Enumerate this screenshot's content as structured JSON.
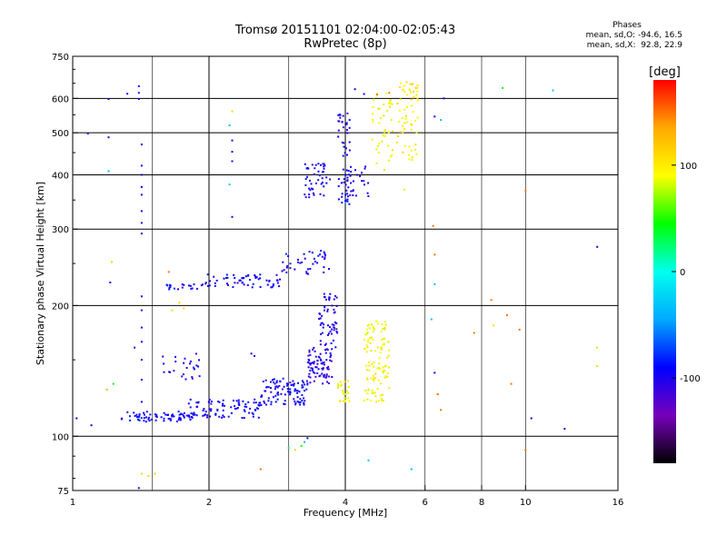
{
  "title_line1": "Tromsø 20151101 02:04:00-02:05:43",
  "title_line2": "RwPretec (8p)",
  "phases": {
    "title": "Phases",
    "stat_o": "mean, sd,O: -94.6, 16.5",
    "stat_x": "mean, sd,X:  92.8, 22.9"
  },
  "chart_data": {
    "type": "scatter",
    "xlabel": "Frequency [MHz]",
    "ylabel": "Stationary phase Virtual Height [km]",
    "x_scale": "log",
    "y_scale": "log",
    "xlim": [
      1,
      16
    ],
    "ylim": [
      75,
      750
    ],
    "x_ticks": [
      1,
      2,
      4,
      6,
      8,
      10,
      16
    ],
    "x_tick_labels": [
      "1",
      "2",
      "4",
      "6",
      "8",
      "10",
      "16"
    ],
    "x_major_grid": [
      1,
      2,
      4,
      16
    ],
    "x_minor_grid": [
      1.5,
      3,
      6,
      8,
      10
    ],
    "y_ticks": [
      75,
      100,
      200,
      300,
      400,
      500,
      600,
      750
    ],
    "y_tick_labels": [
      "75",
      "100",
      "200",
      "300",
      "400",
      "500",
      "600",
      "750"
    ],
    "y_grid": [
      100,
      200,
      300,
      400,
      500,
      600
    ],
    "grid": true,
    "colorbar": {
      "label": "[deg]",
      "range": [
        -180,
        180
      ],
      "ticks": [
        100,
        0,
        -100
      ],
      "tick_labels": [
        "100",
        "0",
        "-100"
      ],
      "colors": [
        "#000000",
        "#7700bb",
        "#0000ff",
        "#00aaff",
        "#00ffee",
        "#00ff00",
        "#ffff00",
        "#ffaa00",
        "#ff0000"
      ]
    },
    "clusters": [
      {
        "x_range": [
          1.28,
          1.85
        ],
        "y_range": [
          108,
          114
        ],
        "count": 70,
        "phase": -95
      },
      {
        "x_range": [
          1.8,
          2.6
        ],
        "y_range": [
          110,
          122
        ],
        "count": 90,
        "phase": -95
      },
      {
        "x_range": [
          2.6,
          3.3
        ],
        "y_range": [
          118,
          136
        ],
        "count": 100,
        "phase": -95
      },
      {
        "x_range": [
          3.3,
          3.75
        ],
        "y_range": [
          132,
          160
        ],
        "count": 80,
        "phase": -105
      },
      {
        "x_range": [
          3.5,
          3.85
        ],
        "y_range": [
          160,
          215
        ],
        "count": 60,
        "phase": -100
      },
      {
        "x_range": [
          3.85,
          4.1
        ],
        "y_range": [
          120,
          135
        ],
        "count": 25,
        "phase": 95
      },
      {
        "x_range": [
          4.4,
          5.0
        ],
        "y_range": [
          120,
          185
        ],
        "count": 110,
        "phase": 95
      },
      {
        "x_range": [
          1.6,
          1.95
        ],
        "y_range": [
          218,
          224
        ],
        "count": 20,
        "phase": -95
      },
      {
        "x_range": [
          1.95,
          2.9
        ],
        "y_range": [
          220,
          236
        ],
        "count": 60,
        "phase": -95
      },
      {
        "x_range": [
          2.9,
          3.7
        ],
        "y_range": [
          236,
          268
        ],
        "count": 40,
        "phase": -95
      },
      {
        "x_range": [
          1.55,
          1.95
        ],
        "y_range": [
          135,
          158
        ],
        "count": 25,
        "phase": -100
      },
      {
        "x_range": [
          3.25,
          3.7
        ],
        "y_range": [
          355,
          425
        ],
        "count": 45,
        "phase": -100
      },
      {
        "x_range": [
          3.85,
          4.1
        ],
        "y_range": [
          340,
          560
        ],
        "count": 55,
        "phase": -100
      },
      {
        "x_range": [
          4.0,
          4.5
        ],
        "y_range": [
          350,
          420
        ],
        "count": 25,
        "phase": -100
      },
      {
        "x_range": [
          4.55,
          5.1
        ],
        "y_range": [
          410,
          620
        ],
        "count": 45,
        "phase": 95
      },
      {
        "x_range": [
          5.2,
          5.8
        ],
        "y_range": [
          430,
          660
        ],
        "count": 60,
        "phase": 100
      }
    ],
    "points": [
      {
        "x": 1.08,
        "y": 498,
        "phase": -95
      },
      {
        "x": 1.2,
        "y": 598,
        "phase": -100
      },
      {
        "x": 1.2,
        "y": 488,
        "phase": -95
      },
      {
        "x": 1.2,
        "y": 408,
        "phase": -30
      },
      {
        "x": 1.22,
        "y": 252,
        "phase": 110
      },
      {
        "x": 1.21,
        "y": 226,
        "phase": -95
      },
      {
        "x": 1.19,
        "y": 128,
        "phase": 130
      },
      {
        "x": 1.23,
        "y": 132,
        "phase": 40
      },
      {
        "x": 1.32,
        "y": 615,
        "phase": -95
      },
      {
        "x": 1.4,
        "y": 640,
        "phase": -100
      },
      {
        "x": 1.4,
        "y": 618,
        "phase": -110
      },
      {
        "x": 1.4,
        "y": 598,
        "phase": -100
      },
      {
        "x": 1.42,
        "y": 470,
        "phase": -100
      },
      {
        "x": 1.42,
        "y": 420,
        "phase": -100
      },
      {
        "x": 1.42,
        "y": 400,
        "phase": -110
      },
      {
        "x": 1.42,
        "y": 375,
        "phase": -95
      },
      {
        "x": 1.42,
        "y": 360,
        "phase": -100
      },
      {
        "x": 1.42,
        "y": 330,
        "phase": -100
      },
      {
        "x": 1.42,
        "y": 310,
        "phase": -110
      },
      {
        "x": 1.42,
        "y": 293,
        "phase": -100
      },
      {
        "x": 1.42,
        "y": 210,
        "phase": -100
      },
      {
        "x": 1.42,
        "y": 195,
        "phase": -110
      },
      {
        "x": 1.42,
        "y": 178,
        "phase": -100
      },
      {
        "x": 1.42,
        "y": 165,
        "phase": -100
      },
      {
        "x": 1.42,
        "y": 150,
        "phase": -110
      },
      {
        "x": 1.42,
        "y": 135,
        "phase": -100
      },
      {
        "x": 1.42,
        "y": 120,
        "phase": -100
      },
      {
        "x": 1.37,
        "y": 160,
        "phase": -100
      },
      {
        "x": 1.4,
        "y": 76,
        "phase": -100
      },
      {
        "x": 1.42,
        "y": 82,
        "phase": 110
      },
      {
        "x": 1.47,
        "y": 81,
        "phase": 110
      },
      {
        "x": 1.52,
        "y": 82,
        "phase": 110
      },
      {
        "x": 1.63,
        "y": 239,
        "phase": 150
      },
      {
        "x": 1.66,
        "y": 195,
        "phase": 110
      },
      {
        "x": 1.72,
        "y": 203,
        "phase": 110
      },
      {
        "x": 1.76,
        "y": 197,
        "phase": 110
      },
      {
        "x": 1.02,
        "y": 110,
        "phase": -95
      },
      {
        "x": 1.1,
        "y": 106,
        "phase": -95
      },
      {
        "x": 2.25,
        "y": 560,
        "phase": 110
      },
      {
        "x": 2.22,
        "y": 520,
        "phase": -30
      },
      {
        "x": 2.25,
        "y": 480,
        "phase": -95
      },
      {
        "x": 2.25,
        "y": 452,
        "phase": -100
      },
      {
        "x": 2.25,
        "y": 430,
        "phase": -100
      },
      {
        "x": 2.22,
        "y": 380,
        "phase": -30
      },
      {
        "x": 2.25,
        "y": 320,
        "phase": -95
      },
      {
        "x": 2.48,
        "y": 155,
        "phase": -95
      },
      {
        "x": 2.52,
        "y": 153,
        "phase": -100
      },
      {
        "x": 2.6,
        "y": 84,
        "phase": 150
      },
      {
        "x": 3.0,
        "y": 94,
        "phase": 20
      },
      {
        "x": 3.1,
        "y": 93,
        "phase": 110
      },
      {
        "x": 3.2,
        "y": 95,
        "phase": 50
      },
      {
        "x": 3.25,
        "y": 97,
        "phase": -40
      },
      {
        "x": 3.3,
        "y": 99,
        "phase": -95
      },
      {
        "x": 4.5,
        "y": 88,
        "phase": -30
      },
      {
        "x": 5.6,
        "y": 84,
        "phase": -30
      },
      {
        "x": 4.4,
        "y": 614,
        "phase": -95
      },
      {
        "x": 4.7,
        "y": 613,
        "phase": 150
      },
      {
        "x": 5.0,
        "y": 618,
        "phase": 150
      },
      {
        "x": 5.4,
        "y": 370,
        "phase": 80
      },
      {
        "x": 6.25,
        "y": 305,
        "phase": 150
      },
      {
        "x": 6.3,
        "y": 262,
        "phase": 150
      },
      {
        "x": 6.3,
        "y": 224,
        "phase": -30
      },
      {
        "x": 6.2,
        "y": 186,
        "phase": -30
      },
      {
        "x": 6.3,
        "y": 140,
        "phase": -95
      },
      {
        "x": 6.4,
        "y": 125,
        "phase": 150
      },
      {
        "x": 6.5,
        "y": 115,
        "phase": 150
      },
      {
        "x": 6.3,
        "y": 545,
        "phase": -100
      },
      {
        "x": 6.5,
        "y": 535,
        "phase": -30
      },
      {
        "x": 6.6,
        "y": 600,
        "phase": -100
      },
      {
        "x": 7.7,
        "y": 173,
        "phase": 150
      },
      {
        "x": 8.4,
        "y": 206,
        "phase": 150
      },
      {
        "x": 8.5,
        "y": 180,
        "phase": 110
      },
      {
        "x": 9.1,
        "y": 190,
        "phase": 150
      },
      {
        "x": 8.9,
        "y": 634,
        "phase": 40
      },
      {
        "x": 9.3,
        "y": 132,
        "phase": 150
      },
      {
        "x": 9.7,
        "y": 176,
        "phase": 150
      },
      {
        "x": 10.0,
        "y": 368,
        "phase": 150
      },
      {
        "x": 10.0,
        "y": 93,
        "phase": 150
      },
      {
        "x": 10.3,
        "y": 110,
        "phase": -95
      },
      {
        "x": 11.5,
        "y": 626,
        "phase": -30
      },
      {
        "x": 12.2,
        "y": 104,
        "phase": -95
      },
      {
        "x": 14.4,
        "y": 273,
        "phase": -100
      },
      {
        "x": 14.4,
        "y": 160,
        "phase": 110
      },
      {
        "x": 14.4,
        "y": 145,
        "phase": 110
      },
      {
        "x": 4.2,
        "y": 630,
        "phase": -95
      },
      {
        "x": 4.0,
        "y": 345,
        "phase": -30
      }
    ]
  }
}
